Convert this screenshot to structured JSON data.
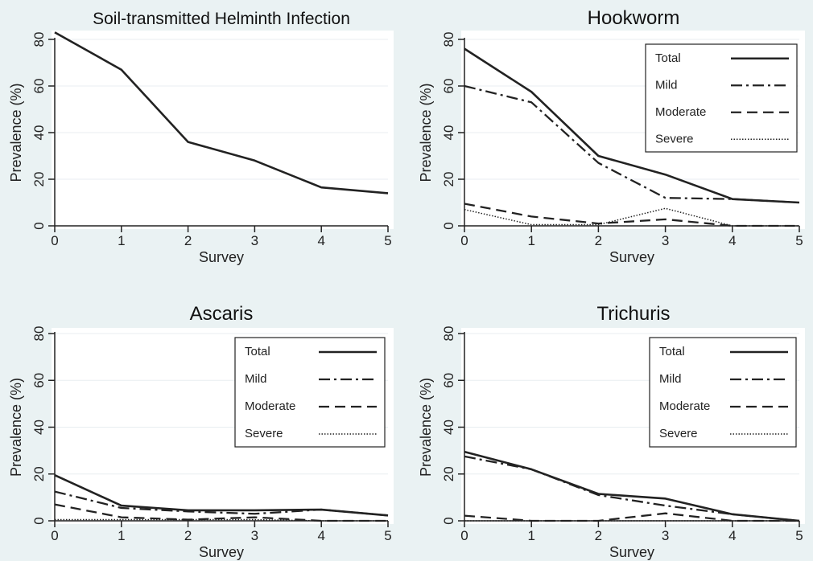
{
  "chart_data": [
    {
      "type": "line",
      "title": "Soil-transmitted Helminth Infection",
      "xlabel": "Survey",
      "ylabel": "Prevalence (%)",
      "x": [
        0,
        1,
        2,
        3,
        4,
        5
      ],
      "xticks": [
        "0",
        "1",
        "2",
        "3",
        "4",
        "5"
      ],
      "yticks": [
        "0",
        "20",
        "40",
        "60",
        "80"
      ],
      "xlim": [
        0,
        5
      ],
      "ylim": [
        0,
        80
      ],
      "legend": false,
      "series": [
        {
          "values": [
            83,
            67,
            36,
            28,
            16.5,
            14
          ],
          "style": "solid"
        }
      ]
    },
    {
      "type": "line",
      "title": "Hookworm",
      "xlabel": "Survey",
      "ylabel": "Prevalence (%)",
      "x": [
        0,
        1,
        2,
        3,
        4,
        5
      ],
      "xticks": [
        "0",
        "1",
        "2",
        "3",
        "4",
        "5"
      ],
      "yticks": [
        "0",
        "20",
        "40",
        "60",
        "80"
      ],
      "xlim": [
        0,
        5
      ],
      "ylim": [
        0,
        80
      ],
      "legend": true,
      "legend_position": "top-right",
      "series": [
        {
          "name": "Total",
          "values": [
            76,
            57.5,
            30,
            22,
            11.5,
            10
          ],
          "style": "solid"
        },
        {
          "name": "Mild",
          "values": [
            60,
            53,
            27,
            12,
            11.5,
            10
          ],
          "style": "dashdot"
        },
        {
          "name": "Moderate",
          "values": [
            9.5,
            4,
            1,
            2.8,
            0,
            0
          ],
          "style": "dashed"
        },
        {
          "name": "Severe",
          "values": [
            7,
            0.5,
            0.5,
            7.5,
            0,
            0
          ],
          "style": "dotted"
        }
      ]
    },
    {
      "type": "line",
      "title": "Ascaris",
      "xlabel": "Survey",
      "ylabel": "Prevalence (%)",
      "x": [
        0,
        1,
        2,
        3,
        4,
        5
      ],
      "xticks": [
        "0",
        "1",
        "2",
        "3",
        "4",
        "5"
      ],
      "yticks": [
        "0",
        "20",
        "40",
        "60",
        "80"
      ],
      "xlim": [
        0,
        5
      ],
      "ylim": [
        0,
        80
      ],
      "legend": true,
      "legend_position": "top-right",
      "series": [
        {
          "name": "Total",
          "values": [
            19.5,
            6.5,
            4.5,
            4.5,
            4.8,
            2.3
          ],
          "style": "solid"
        },
        {
          "name": "Mild",
          "values": [
            12.5,
            5.5,
            4,
            3,
            4.8,
            2.3
          ],
          "style": "dashdot"
        },
        {
          "name": "Moderate",
          "values": [
            7,
            1.5,
            0.5,
            1.5,
            0,
            0
          ],
          "style": "dashed"
        },
        {
          "name": "Severe",
          "values": [
            0.5,
            0.5,
            0.5,
            0.5,
            0,
            0
          ],
          "style": "dotted"
        }
      ]
    },
    {
      "type": "line",
      "title": "Trichuris",
      "xlabel": "Survey",
      "ylabel": "Prevalence (%)",
      "x": [
        0,
        1,
        2,
        3,
        4,
        5
      ],
      "xticks": [
        "0",
        "1",
        "2",
        "3",
        "4",
        "5"
      ],
      "yticks": [
        "0",
        "20",
        "40",
        "60",
        "80"
      ],
      "xlim": [
        0,
        5
      ],
      "ylim": [
        0,
        80
      ],
      "legend": true,
      "legend_position": "top-right",
      "series": [
        {
          "name": "Total",
          "values": [
            29.5,
            22,
            11.5,
            9.5,
            2.8,
            0
          ],
          "style": "solid"
        },
        {
          "name": "Mild",
          "values": [
            27.5,
            22,
            11,
            6.5,
            2.8,
            0
          ],
          "style": "dashdot"
        },
        {
          "name": "Moderate",
          "values": [
            2.2,
            0,
            0,
            3.2,
            0,
            0
          ],
          "style": "dashed"
        },
        {
          "name": "Severe",
          "values": [
            0,
            0,
            0,
            0,
            0,
            0
          ],
          "style": "dotted"
        }
      ]
    }
  ]
}
